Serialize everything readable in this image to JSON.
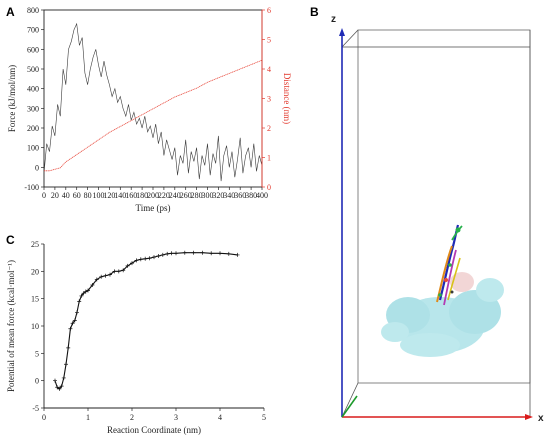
{
  "panels": {
    "a_label": "A",
    "b_label": "B",
    "c_label": "C"
  },
  "panel_b": {
    "axis_z": "z",
    "axis_x": "x",
    "colors": {
      "box": "#555555",
      "z_axis": "#1f2ab5",
      "x_axis": "#d91b1b",
      "y_axis": "#1e9b2c",
      "protein": "#7fd3dc"
    }
  },
  "chart_data": [
    {
      "type": "line",
      "panel": "A",
      "xlabel": "Time (ps)",
      "ylabel": "Force (kJ/mol/nm)",
      "y2label": "Distance (nm)",
      "xlim": [
        0,
        400
      ],
      "ylim": [
        -100,
        800
      ],
      "y2lim": [
        0,
        6
      ],
      "x_ticks": [
        0,
        20,
        40,
        60,
        80,
        100,
        120,
        140,
        160,
        180,
        200,
        220,
        240,
        260,
        280,
        300,
        320,
        340,
        360,
        380,
        400
      ],
      "y_ticks": [
        -100,
        0,
        100,
        200,
        300,
        400,
        500,
        600,
        700,
        800
      ],
      "y2_ticks": [
        0,
        1,
        2,
        3,
        4,
        5,
        6
      ],
      "colors": {
        "force": "#3a3a3a",
        "distance": "#e8493c",
        "right_axis": "#e23a2e"
      },
      "series": [
        {
          "axis": "left",
          "x": [
            0,
            5,
            10,
            15,
            20,
            25,
            30,
            35,
            40,
            45,
            50,
            55,
            60,
            65,
            70,
            75,
            80,
            85,
            90,
            95,
            100,
            105,
            110,
            115,
            120,
            125,
            130,
            135,
            140,
            145,
            150,
            155,
            160,
            165,
            170,
            175,
            180,
            185,
            190,
            195,
            200,
            205,
            210,
            215,
            220,
            225,
            230,
            235,
            240,
            245,
            250,
            255,
            260,
            265,
            270,
            275,
            280,
            285,
            290,
            295,
            300,
            305,
            310,
            315,
            320,
            325,
            330,
            335,
            340,
            345,
            350,
            355,
            360,
            365,
            370,
            375,
            380,
            385,
            390,
            395,
            400
          ],
          "values": [
            -30,
            120,
            80,
            210,
            160,
            320,
            260,
            500,
            420,
            600,
            640,
            700,
            730,
            620,
            660,
            480,
            420,
            500,
            560,
            600,
            520,
            460,
            540,
            470,
            420,
            360,
            400,
            330,
            360,
            300,
            260,
            320,
            240,
            280,
            220,
            250,
            200,
            260,
            180,
            210,
            150,
            220,
            120,
            180,
            60,
            140,
            90,
            40,
            100,
            -40,
            60,
            20,
            140,
            -30,
            80,
            30,
            100,
            -60,
            60,
            10,
            120,
            -40,
            70,
            20,
            160,
            -70,
            60,
            110,
            0,
            80,
            -50,
            40,
            150,
            -30,
            60,
            100,
            0,
            120,
            -20,
            60,
            10
          ]
        },
        {
          "axis": "right",
          "x": [
            0,
            10,
            20,
            30,
            40,
            60,
            80,
            100,
            120,
            140,
            160,
            180,
            200,
            220,
            240,
            260,
            280,
            300,
            320,
            340,
            360,
            380,
            400
          ],
          "values": [
            0.55,
            0.55,
            0.6,
            0.65,
            0.85,
            1.1,
            1.35,
            1.6,
            1.85,
            2.05,
            2.25,
            2.45,
            2.65,
            2.85,
            3.05,
            3.2,
            3.35,
            3.55,
            3.7,
            3.85,
            4.0,
            4.15,
            4.3
          ]
        }
      ]
    },
    {
      "type": "line",
      "panel": "C",
      "xlabel": "Reaction Coordinate (nm)",
      "ylabel": "Potential of mean force (kcal·mol⁻¹)",
      "xlim": [
        0,
        5
      ],
      "ylim": [
        -5,
        25
      ],
      "x_ticks": [
        0,
        1,
        2,
        3,
        4,
        5
      ],
      "y_ticks": [
        -5,
        0,
        5,
        10,
        15,
        20,
        25
      ],
      "colors": {
        "pmf": "#111111"
      },
      "series": [
        {
          "x": [
            0.25,
            0.3,
            0.35,
            0.4,
            0.45,
            0.5,
            0.55,
            0.6,
            0.65,
            0.7,
            0.75,
            0.8,
            0.85,
            0.9,
            0.95,
            1.0,
            1.1,
            1.2,
            1.3,
            1.4,
            1.5,
            1.6,
            1.7,
            1.8,
            1.9,
            2.0,
            2.1,
            2.2,
            2.3,
            2.4,
            2.5,
            2.6,
            2.7,
            2.8,
            2.9,
            3.0,
            3.2,
            3.4,
            3.6,
            3.8,
            4.0,
            4.2,
            4.4
          ],
          "values": [
            0,
            -1.2,
            -1.5,
            -1.0,
            0.5,
            3.0,
            6.0,
            9.5,
            10.5,
            11.0,
            12.5,
            14.5,
            15.5,
            16.0,
            16.3,
            16.5,
            17.5,
            18.5,
            19.0,
            19.2,
            19.4,
            20.0,
            20.0,
            20.2,
            21.0,
            21.5,
            22.0,
            22.2,
            22.3,
            22.4,
            22.6,
            22.8,
            23.0,
            23.2,
            23.3,
            23.3,
            23.4,
            23.4,
            23.4,
            23.3,
            23.3,
            23.2,
            23.0
          ]
        }
      ]
    }
  ]
}
